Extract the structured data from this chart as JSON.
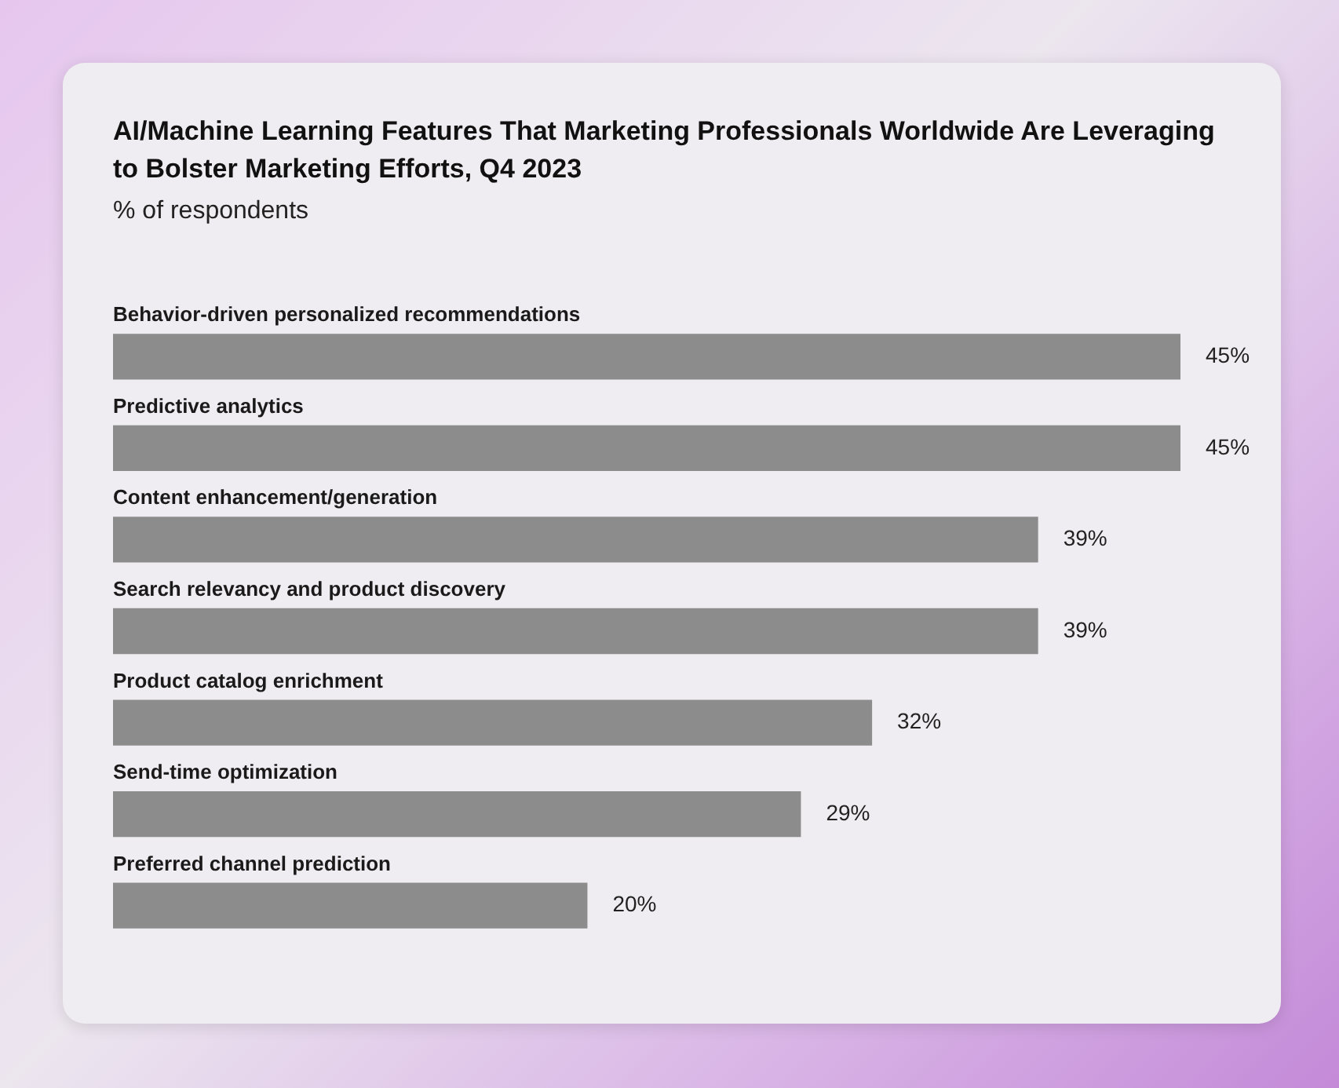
{
  "chart_data": {
    "type": "bar",
    "orientation": "horizontal",
    "title": "AI/Machine Learning Features That Marketing Professionals Worldwide Are Leveraging to Bolster Marketing Efforts, Q4 2023",
    "subtitle": "% of respondents",
    "categories": [
      "Behavior-driven personalized recommendations",
      "Predictive analytics",
      "Content enhancement/generation",
      "Search relevancy and product discovery",
      "Product catalog enrichment",
      "Send-time optimization",
      "Preferred channel prediction"
    ],
    "values": [
      45,
      45,
      39,
      39,
      32,
      29,
      20
    ],
    "value_labels": [
      "45%",
      "45%",
      "39%",
      "39%",
      "32%",
      "29%",
      "20%"
    ],
    "color": "#8c8c8c"
  }
}
